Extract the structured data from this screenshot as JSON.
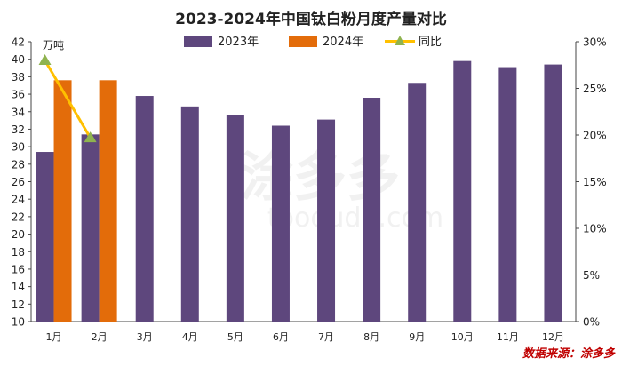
{
  "chart_data": {
    "type": "bar",
    "title": "2023-2024年中国钛白粉月度产量对比",
    "unit_label": "万吨",
    "categories": [
      "1月",
      "2月",
      "3月",
      "4月",
      "5月",
      "6月",
      "7月",
      "8月",
      "9月",
      "10月",
      "11月",
      "12月"
    ],
    "series": [
      {
        "name": "2023年",
        "type": "bar",
        "axis": "left",
        "color": "#5e477d",
        "values": [
          29.4,
          31.4,
          35.8,
          34.6,
          33.6,
          32.4,
          33.1,
          35.6,
          37.3,
          39.8,
          39.1,
          39.4
        ]
      },
      {
        "name": "2024年",
        "type": "bar",
        "axis": "left",
        "color": "#e36c0a",
        "values": [
          37.6,
          37.6,
          null,
          null,
          null,
          null,
          null,
          null,
          null,
          null,
          null,
          null
        ]
      },
      {
        "name": "同比",
        "type": "line",
        "axis": "right",
        "color": "#ffc000",
        "marker_color": "#8fb34f",
        "values": [
          28.0,
          19.7,
          null,
          null,
          null,
          null,
          null,
          null,
          null,
          null,
          null,
          null
        ]
      }
    ],
    "y_left": {
      "min": 10,
      "max": 42,
      "step": 2,
      "ticks": [
        "10",
        "12",
        "14",
        "16",
        "18",
        "20",
        "22",
        "24",
        "26",
        "28",
        "30",
        "32",
        "34",
        "36",
        "38",
        "40",
        "42"
      ]
    },
    "y_right": {
      "min": 0,
      "max": 30,
      "step": 5,
      "ticks": [
        "0%",
        "5%",
        "10%",
        "15%",
        "20%",
        "25%",
        "30%"
      ]
    },
    "legend_position": "top",
    "grid": false
  },
  "source": "数据来源：涂多多",
  "watermark": "涂多多 toodudu.com"
}
